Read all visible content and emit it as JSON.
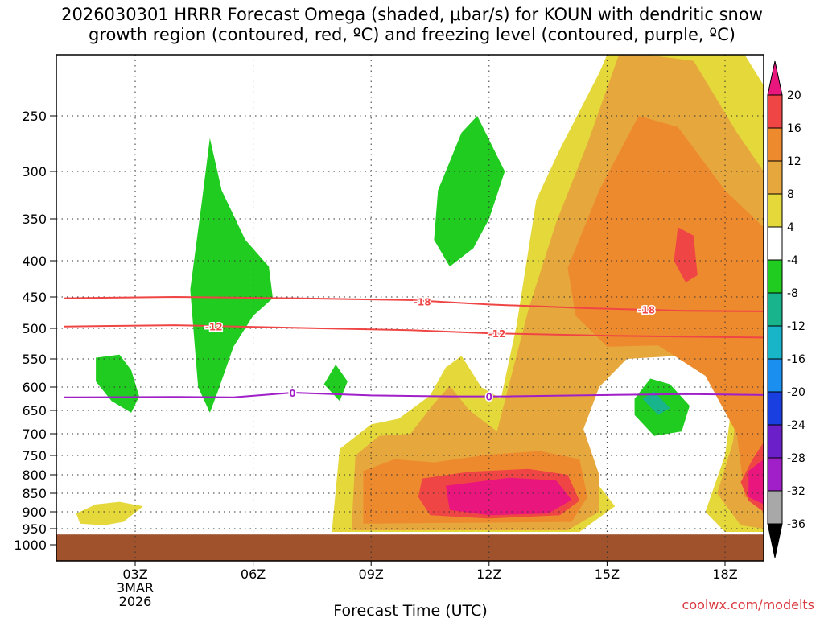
{
  "chart_data": {
    "type": "heatmap",
    "title_lines": [
      "2026030301 HRRR Forecast Omega (shaded, μbar/s) for KOUN with dendritic snow",
      "growth region (contoured, red, ºC) and freezing level (contoured, purple, ºC)"
    ],
    "xlabel": "Forecast Time (UTC)",
    "ylabel": "",
    "x_ticks": [
      {
        "hour": 3,
        "lines": [
          "03Z",
          "3MAR",
          "2026"
        ]
      },
      {
        "hour": 6,
        "lines": [
          "06Z"
        ]
      },
      {
        "hour": 9,
        "lines": [
          "09Z"
        ]
      },
      {
        "hour": 12,
        "lines": [
          "12Z"
        ]
      },
      {
        "hour": 15,
        "lines": [
          "15Z"
        ]
      },
      {
        "hour": 18,
        "lines": [
          "18Z"
        ]
      }
    ],
    "xlim": [
      1.2,
      19.1
    ],
    "y_ticks": [
      "250",
      "300",
      "350",
      "400",
      "450",
      "500",
      "550",
      "600",
      "650",
      "700",
      "750",
      "800",
      "850",
      "900",
      "950",
      "1000"
    ],
    "ylim_hPa": [
      200,
      1000
    ],
    "colorbar": {
      "labels": [
        "20",
        "16",
        "12",
        "8",
        "4",
        "-4",
        "-8",
        "-12",
        "-16",
        "-20",
        "-24",
        "-28",
        "-32",
        "-36"
      ],
      "colors": [
        "#e8167d",
        "#f04545",
        "#ee8a2e",
        "#e6a83c",
        "#e4d83a",
        "#ffffff",
        "#1fcc1f",
        "#18b48c",
        "#18b4c8",
        "#1a8ff0",
        "#1a3fe0",
        "#6a1fc8",
        "#a01fc8",
        "#a8a8a8",
        "#000000"
      ]
    },
    "omega_regions": [
      {
        "name": "",
        "level": "-4",
        "color": "#1fcc1f",
        "points": [
          [
            2.0,
            548
          ],
          [
            2.6,
            543
          ],
          [
            2.9,
            570
          ],
          [
            3.1,
            620
          ],
          [
            2.9,
            655
          ],
          [
            2.4,
            630
          ],
          [
            2.0,
            590
          ]
        ]
      },
      {
        "name": "",
        "level": "-4",
        "color": "#1fcc1f",
        "points": [
          [
            4.4,
            440
          ],
          [
            4.7,
            330
          ],
          [
            4.9,
            270
          ],
          [
            5.2,
            320
          ],
          [
            5.8,
            375
          ],
          [
            6.4,
            408
          ],
          [
            6.5,
            452
          ],
          [
            6.0,
            480
          ],
          [
            5.5,
            530
          ],
          [
            5.1,
            610
          ],
          [
            4.9,
            655
          ],
          [
            4.6,
            600
          ]
        ]
      },
      {
        "name": "",
        "level": "-4",
        "color": "#1fcc1f",
        "points": [
          [
            7.8,
            595
          ],
          [
            8.1,
            560
          ],
          [
            8.4,
            590
          ],
          [
            8.2,
            630
          ]
        ]
      },
      {
        "name": "",
        "level": "-4",
        "color": "#1fcc1f",
        "points": [
          [
            10.7,
            320
          ],
          [
            11.3,
            265
          ],
          [
            11.7,
            250
          ],
          [
            12.4,
            300
          ],
          [
            12.0,
            350
          ],
          [
            11.6,
            385
          ],
          [
            11.0,
            408
          ],
          [
            10.6,
            375
          ]
        ]
      },
      {
        "name": "",
        "level": "-4",
        "color": "#1fcc1f",
        "points": [
          [
            15.7,
            625
          ],
          [
            16.1,
            585
          ],
          [
            16.6,
            595
          ],
          [
            17.1,
            640
          ],
          [
            16.9,
            695
          ],
          [
            16.2,
            705
          ],
          [
            15.7,
            660
          ]
        ]
      },
      {
        "name": "",
        "level": "-8",
        "color": "#18b48c",
        "points": [
          [
            15.9,
            625
          ],
          [
            16.2,
            610
          ],
          [
            16.6,
            645
          ],
          [
            16.3,
            660
          ]
        ]
      },
      {
        "name": "",
        "level": "4",
        "color": "#e4d83a",
        "points": [
          [
            1.5,
            905
          ],
          [
            2.0,
            880
          ],
          [
            2.6,
            873
          ],
          [
            3.2,
            885
          ],
          [
            2.7,
            930
          ],
          [
            2.2,
            940
          ],
          [
            1.6,
            935
          ]
        ]
      },
      {
        "name": "",
        "level": "4",
        "color": "#e4d83a",
        "points": [
          [
            8.2,
            735
          ],
          [
            9.0,
            680
          ],
          [
            9.7,
            668
          ],
          [
            10.5,
            618
          ],
          [
            10.9,
            565
          ],
          [
            11.3,
            545
          ],
          [
            11.8,
            600
          ],
          [
            12.3,
            625
          ],
          [
            12.7,
            495
          ],
          [
            13.2,
            330
          ],
          [
            13.8,
            280
          ],
          [
            14.8,
            215
          ],
          [
            15.0,
            185
          ],
          [
            15.5,
            135
          ],
          [
            16.0,
            115
          ],
          [
            17.5,
            155
          ],
          [
            18.5,
            195
          ],
          [
            19.1,
            225
          ],
          [
            19.1,
            960
          ],
          [
            18.0,
            960
          ],
          [
            17.5,
            900
          ],
          [
            18.0,
            750
          ],
          [
            18.2,
            620
          ],
          [
            17.2,
            540
          ],
          [
            16.5,
            520
          ],
          [
            15.8,
            525
          ],
          [
            15.2,
            550
          ],
          [
            14.5,
            610
          ],
          [
            14.1,
            700
          ],
          [
            14.5,
            790
          ],
          [
            15.2,
            885
          ],
          [
            14.3,
            960
          ],
          [
            8.0,
            960
          ]
        ]
      },
      {
        "name": "",
        "level": "8",
        "color": "#e6a83c",
        "points": [
          [
            8.6,
            750
          ],
          [
            9.2,
            705
          ],
          [
            10.0,
            700
          ],
          [
            10.6,
            635
          ],
          [
            11.0,
            598
          ],
          [
            11.5,
            650
          ],
          [
            12.2,
            695
          ],
          [
            13.0,
            470
          ],
          [
            13.7,
            355
          ],
          [
            14.5,
            275
          ],
          [
            15.3,
            200
          ],
          [
            16.0,
            175
          ],
          [
            17.2,
            205
          ],
          [
            18.3,
            265
          ],
          [
            19.1,
            300
          ],
          [
            19.1,
            950
          ],
          [
            18.4,
            940
          ],
          [
            17.8,
            850
          ],
          [
            18.2,
            720
          ],
          [
            18.3,
            640
          ],
          [
            17.6,
            560
          ],
          [
            16.8,
            545
          ],
          [
            15.5,
            550
          ],
          [
            14.8,
            600
          ],
          [
            14.4,
            690
          ],
          [
            14.8,
            800
          ],
          [
            14.8,
            900
          ],
          [
            14.0,
            955
          ],
          [
            8.5,
            955
          ]
        ]
      },
      {
        "name": "",
        "level": "12",
        "color": "#ee8a2e",
        "points": [
          [
            8.8,
            790
          ],
          [
            9.6,
            760
          ],
          [
            10.6,
            768
          ],
          [
            12.0,
            748
          ],
          [
            13.3,
            740
          ],
          [
            14.3,
            760
          ],
          [
            14.5,
            860
          ],
          [
            14.1,
            930
          ],
          [
            8.8,
            935
          ]
        ]
      },
      {
        "name": "",
        "level": "12",
        "color": "#ee8a2e",
        "points": [
          [
            14.0,
            410
          ],
          [
            14.8,
            320
          ],
          [
            15.8,
            250
          ],
          [
            16.8,
            260
          ],
          [
            18.0,
            320
          ],
          [
            19.1,
            360
          ],
          [
            19.1,
            880
          ],
          [
            18.5,
            860
          ],
          [
            18.3,
            700
          ],
          [
            17.5,
            580
          ],
          [
            16.3,
            528
          ],
          [
            15.0,
            530
          ],
          [
            14.2,
            480
          ]
        ]
      },
      {
        "name": "",
        "level": "16",
        "color": "#f04545",
        "points": [
          [
            10.3,
            810
          ],
          [
            11.5,
            792
          ],
          [
            13.0,
            785
          ],
          [
            14.0,
            800
          ],
          [
            14.3,
            870
          ],
          [
            13.8,
            910
          ],
          [
            12.0,
            920
          ],
          [
            10.5,
            910
          ],
          [
            10.2,
            860
          ]
        ]
      },
      {
        "name": "",
        "level": "16",
        "color": "#f04545",
        "points": [
          [
            16.8,
            360
          ],
          [
            17.2,
            370
          ],
          [
            17.3,
            420
          ],
          [
            17.0,
            430
          ],
          [
            16.7,
            400
          ]
        ]
      },
      {
        "name": "",
        "level": "16",
        "color": "#f04545",
        "points": [
          [
            18.7,
            760
          ],
          [
            19.1,
            720
          ],
          [
            19.1,
            900
          ],
          [
            18.6,
            870
          ],
          [
            18.4,
            820
          ]
        ]
      },
      {
        "name": "",
        "level": "20",
        "color": "#e8167d",
        "points": [
          [
            10.9,
            830
          ],
          [
            12.5,
            808
          ],
          [
            13.7,
            815
          ],
          [
            14.1,
            868
          ],
          [
            13.5,
            905
          ],
          [
            12.0,
            910
          ],
          [
            11.0,
            895
          ]
        ]
      },
      {
        "name": "",
        "level": "20",
        "color": "#e8167d",
        "points": [
          [
            18.6,
            790
          ],
          [
            19.1,
            760
          ],
          [
            19.1,
            880
          ],
          [
            18.6,
            860
          ]
        ]
      }
    ],
    "contours": [
      {
        "name": "",
        "label": "-18",
        "color": "#f04545",
        "points": [
          [
            1.2,
            452
          ],
          [
            4.0,
            450
          ],
          [
            7.0,
            452
          ],
          [
            10.0,
            455
          ],
          [
            12.0,
            462
          ],
          [
            14.5,
            468
          ],
          [
            17.0,
            472
          ],
          [
            19.1,
            473
          ]
        ],
        "label_at": [
          [
            10.3,
            457
          ],
          [
            16.0,
            470
          ]
        ]
      },
      {
        "name": "",
        "label": "-12",
        "color": "#f04545",
        "points": [
          [
            1.2,
            497
          ],
          [
            4.0,
            495
          ],
          [
            7.0,
            499
          ],
          [
            10.0,
            503
          ],
          [
            12.0,
            508
          ],
          [
            15.0,
            512
          ],
          [
            19.1,
            515
          ]
        ],
        "label_at": [
          [
            5.0,
            497
          ],
          [
            12.2,
            508
          ]
        ]
      },
      {
        "name": "",
        "label": "0",
        "color": "#a01fc8",
        "points": [
          [
            1.2,
            622
          ],
          [
            4.0,
            621
          ],
          [
            5.5,
            622
          ],
          [
            7.0,
            612
          ],
          [
            9.0,
            618
          ],
          [
            11.0,
            620
          ],
          [
            12.5,
            620
          ],
          [
            15.0,
            617
          ],
          [
            17.0,
            615
          ],
          [
            19.1,
            617
          ]
        ],
        "label_at": [
          [
            7.0,
            612
          ],
          [
            12.0,
            620
          ]
        ]
      }
    ],
    "surface": {
      "top_hPa": 968,
      "color": "#a0522d"
    }
  },
  "credit": "coolwx.com/modelts"
}
